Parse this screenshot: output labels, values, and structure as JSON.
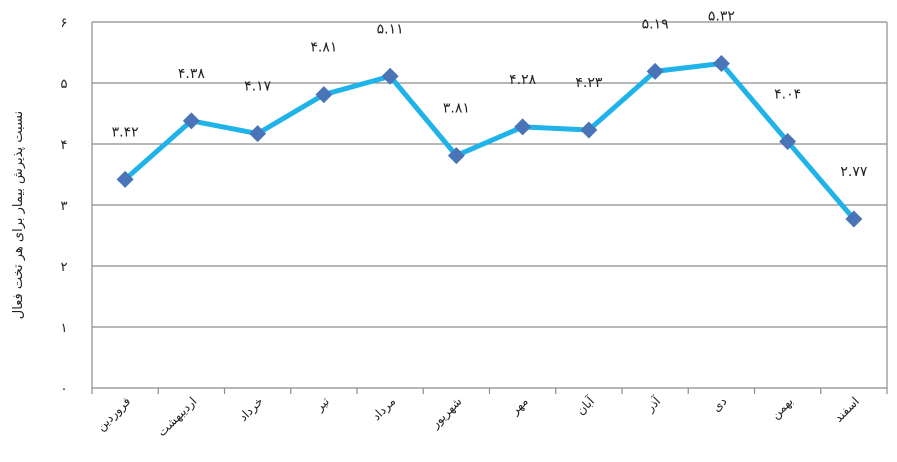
{
  "chart_data": {
    "type": "line",
    "ylabel": "نسبت پذیرش بیمار برای هر تخت فعال",
    "xlabel": "",
    "ylim": [
      0,
      6
    ],
    "yticks": [
      0,
      1,
      2,
      3,
      4,
      5,
      6
    ],
    "ytick_labels": [
      "۰",
      "۱",
      "۲",
      "۳",
      "۴",
      "۵",
      "۶"
    ],
    "grid": true,
    "categories": [
      "فروردین",
      "اردیبهشت",
      "خرداد",
      "تیر",
      "مرداد",
      "شهریور",
      "مهر",
      "آبان",
      "آذر",
      "دی",
      "بهمن",
      "اسفند"
    ],
    "values": [
      3.42,
      4.38,
      4.17,
      4.81,
      5.11,
      3.81,
      4.28,
      4.23,
      5.19,
      5.32,
      4.04,
      2.77
    ],
    "data_labels": [
      "۳.۴۲",
      "۴.۳۸",
      "۴.۱۷",
      "۴.۸۱",
      "۵.۱۱",
      "۳.۸۱",
      "۴.۲۸",
      "۴.۲۳",
      "۵.۱۹",
      "۵.۳۲",
      "۴.۰۴",
      "۲.۷۷"
    ],
    "line_color": "#1fb3ea",
    "marker_color": "#4a74b8",
    "grid_color": "#8c8c8c"
  }
}
